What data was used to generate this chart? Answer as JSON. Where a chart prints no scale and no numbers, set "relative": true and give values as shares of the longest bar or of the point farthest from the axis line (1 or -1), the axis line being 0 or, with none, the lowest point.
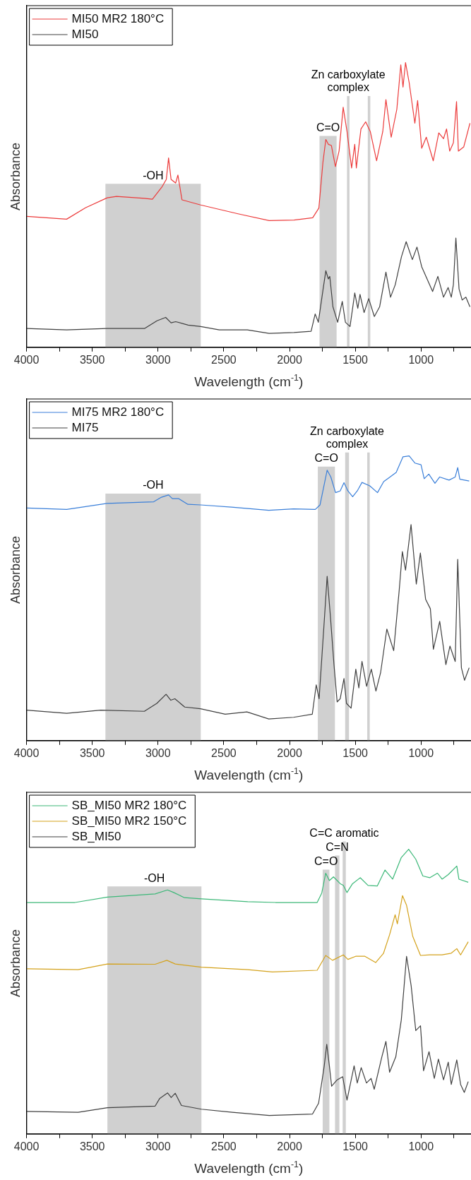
{
  "chart_data": [
    {
      "type": "line",
      "xlabel": "Wavelength (cm$^{-1}$)",
      "ylabel": "Absorbance",
      "relative": true,
      "legend": "top left",
      "grid": false,
      "xlim": [
        4000,
        620
      ],
      "xticks": [
        4000,
        {
          "value": 3750,
          "label": null
        },
        3500,
        {
          "value": 3250,
          "label": null
        },
        3000,
        {
          "value": 2750,
          "label": null
        },
        2500,
        {
          "value": 2250,
          "label": null
        },
        2000,
        {
          "value": 1750,
          "label": null
        },
        1500,
        {
          "value": 1250,
          "label": null
        },
        1000,
        {
          "value": 750,
          "label": null
        }
      ],
      "bands": [
        {
          "axis": "x",
          "from": 3400,
          "to": 2675,
          "label": "-OH",
          "color": "#d0d0d0"
        },
        {
          "axis": "x",
          "from": 1772,
          "to": 1642,
          "label": "C=O",
          "color": "#d0d0d0"
        },
        {
          "axis": "x",
          "from": 1563,
          "to": 1544,
          "label": "Zn carboxylate complex",
          "color": "#d0d0d0"
        },
        {
          "axis": "x",
          "from": 1405,
          "to": 1386,
          "color": "#d0d0d0"
        }
      ],
      "series": [
        {
          "name": "MI50 MR2 180°C",
          "color": "#ec3b3b",
          "x": [
            4000,
            3695,
            3552,
            3387,
            3316,
            3103,
            3043,
            2972,
            2937,
            2920,
            2901,
            2866,
            2849,
            2818,
            2676,
            2392,
            2155,
            1966,
            1824,
            1777,
            1746,
            1724,
            1705,
            1682,
            1651,
            1623,
            1592,
            1563,
            1528,
            1504,
            1492,
            1457,
            1421,
            1386,
            1338,
            1291,
            1267,
            1227,
            1184,
            1154,
            1137,
            1118,
            1090,
            1047,
            1026,
            995,
            960,
            907,
            865,
            829,
            806,
            782,
            754,
            730,
            716,
            675,
            628
          ],
          "values": [
            0.46,
            0.45,
            0.49,
            0.525,
            0.53,
            0.523,
            0.52,
            0.562,
            0.59,
            0.665,
            0.59,
            0.577,
            0.605,
            0.518,
            0.5,
            0.469,
            0.445,
            0.447,
            0.455,
            0.489,
            0.65,
            0.73,
            0.713,
            0.709,
            0.635,
            0.69,
            0.843,
            0.758,
            0.63,
            0.713,
            0.63,
            0.767,
            0.792,
            0.758,
            0.655,
            0.758,
            0.87,
            0.738,
            0.836,
            0.992,
            0.914,
            1.0,
            0.929,
            0.787,
            0.867,
            0.699,
            0.738,
            0.655,
            0.753,
            0.733,
            0.767,
            0.689,
            0.718,
            0.863,
            0.689,
            0.704,
            0.787
          ]
        },
        {
          "name": "MI50",
          "color": "#404040",
          "x": [
            4000,
            3695,
            3387,
            3103,
            3008,
            2942,
            2901,
            2866,
            2771,
            2676,
            2534,
            2321,
            2155,
            1966,
            1836,
            1805,
            1781,
            1746,
            1724,
            1705,
            1694,
            1670,
            1634,
            1599,
            1575,
            1540,
            1504,
            1481,
            1464,
            1433,
            1398,
            1355,
            1315,
            1267,
            1232,
            1196,
            1149,
            1113,
            1066,
            1031,
            995,
            912,
            872,
            829,
            794,
            770,
            754,
            735,
            711,
            687,
            659,
            628
          ],
          "values": [
            0.066,
            0.061,
            0.066,
            0.066,
            0.093,
            0.105,
            0.086,
            0.09,
            0.078,
            0.073,
            0.061,
            0.061,
            0.049,
            0.052,
            0.056,
            0.117,
            0.088,
            0.2,
            0.269,
            0.24,
            0.249,
            0.142,
            0.088,
            0.161,
            0.088,
            0.073,
            0.191,
            0.137,
            0.186,
            0.122,
            0.171,
            0.108,
            0.142,
            0.264,
            0.176,
            0.22,
            0.318,
            0.371,
            0.308,
            0.352,
            0.283,
            0.196,
            0.249,
            0.176,
            0.21,
            0.176,
            0.22,
            0.384,
            0.205,
            0.166,
            0.176,
            0.142
          ]
        }
      ]
    },
    {
      "type": "line",
      "xlabel": "Wavelength (cm$^{-1}$)",
      "ylabel": "Absorbance",
      "relative": true,
      "legend": "top left",
      "grid": false,
      "xlim": [
        4000,
        620
      ],
      "xticks": [
        4000,
        {
          "value": 3750,
          "label": null
        },
        3500,
        {
          "value": 3250,
          "label": null
        },
        3000,
        {
          "value": 2750,
          "label": null
        },
        2500,
        {
          "value": 2250,
          "label": null
        },
        2000,
        {
          "value": 1750,
          "label": null
        },
        1500,
        {
          "value": 1250,
          "label": null
        },
        1000,
        {
          "value": 750,
          "label": null
        }
      ],
      "bands": [
        {
          "axis": "x",
          "from": 3400,
          "to": 2675,
          "label": "-OH",
          "color": "#d0d0d0"
        },
        {
          "axis": "x",
          "from": 1785,
          "to": 1655,
          "label": "C=O",
          "color": "#d0d0d0"
        },
        {
          "axis": "x",
          "from": 1577,
          "to": 1548,
          "label": "Zn carboxylate complex",
          "color": "#d0d0d0"
        },
        {
          "axis": "x",
          "from": 1409,
          "to": 1390,
          "color": "#d0d0d0"
        }
      ],
      "series": [
        {
          "name": "MI75 MR2 180°C",
          "color": "#3a7fd9",
          "x": [
            4000,
            3695,
            3388,
            3033,
            2974,
            2920,
            2891,
            2844,
            2773,
            2678,
            2442,
            2158,
            1969,
            1804,
            1768,
            1714,
            1686,
            1650,
            1615,
            1586,
            1556,
            1520,
            1485,
            1449,
            1390,
            1331,
            1284,
            1236,
            1189,
            1137,
            1090,
            1047,
            1000,
            976,
            941,
            894,
            858,
            787,
            740,
            721,
            705,
            634
          ],
          "values": [
            0.817,
            0.812,
            0.833,
            0.839,
            0.855,
            0.863,
            0.85,
            0.85,
            0.83,
            0.828,
            0.82,
            0.809,
            0.814,
            0.812,
            0.828,
            0.95,
            0.926,
            0.871,
            0.877,
            0.906,
            0.877,
            0.857,
            0.877,
            0.907,
            0.895,
            0.871,
            0.91,
            0.926,
            0.942,
            0.997,
            1.0,
            0.975,
            0.969,
            0.92,
            0.936,
            0.904,
            0.926,
            0.915,
            0.926,
            0.959,
            0.918,
            0.912
          ]
        },
        {
          "name": "MI75",
          "color": "#404040",
          "x": [
            4000,
            3695,
            3435,
            3104,
            3009,
            2939,
            2903,
            2872,
            2797,
            2678,
            2489,
            2324,
            2158,
            1969,
            1827,
            1797,
            1775,
            1733,
            1714,
            1690,
            1662,
            1638,
            1615,
            1586,
            1567,
            1532,
            1496,
            1473,
            1449,
            1414,
            1378,
            1343,
            1307,
            1260,
            1208,
            1166,
            1142,
            1118,
            1076,
            1036,
            1005,
            965,
            929,
            906,
            858,
            811,
            780,
            740,
            721,
            693,
            669,
            634
          ],
          "values": [
            0.107,
            0.096,
            0.107,
            0.103,
            0.131,
            0.163,
            0.142,
            0.147,
            0.118,
            0.112,
            0.093,
            0.101,
            0.076,
            0.082,
            0.093,
            0.196,
            0.147,
            0.441,
            0.577,
            0.441,
            0.267,
            0.136,
            0.147,
            0.218,
            0.131,
            0.114,
            0.251,
            0.185,
            0.278,
            0.191,
            0.251,
            0.174,
            0.24,
            0.392,
            0.316,
            0.528,
            0.664,
            0.599,
            0.759,
            0.55,
            0.659,
            0.496,
            0.463,
            0.321,
            0.419,
            0.267,
            0.332,
            0.278,
            0.637,
            0.256,
            0.212,
            0.256
          ]
        }
      ]
    },
    {
      "type": "line",
      "xlabel": "Wavelength (cm$^{-1}$)",
      "ylabel": "Absorbance",
      "relative": true,
      "legend": "top left",
      "grid": false,
      "xlim": [
        4000,
        620
      ],
      "xticks": [
        4000,
        {
          "value": 3750,
          "label": null
        },
        3500,
        {
          "value": 3250,
          "label": null
        },
        3000,
        {
          "value": 2750,
          "label": null
        },
        2500,
        {
          "value": 2250,
          "label": null
        },
        2000,
        {
          "value": 1750,
          "label": null
        },
        1500,
        {
          "value": 1250,
          "label": null
        },
        1000,
        {
          "value": 750,
          "label": null
        }
      ],
      "bands": [
        {
          "axis": "x",
          "from": 3385,
          "to": 2670,
          "label": "-OH",
          "color": "#d0d0d0"
        },
        {
          "axis": "x",
          "from": 1748,
          "to": 1697,
          "label": "C=O",
          "color": "#d0d0d0"
        },
        {
          "axis": "x",
          "from": 1654,
          "to": 1621,
          "label": "C=N",
          "color": "#d0d0d0"
        },
        {
          "axis": "x",
          "from": 1596,
          "to": 1572,
          "label": "C=C aromatic",
          "color": "#d0d0d0"
        }
      ],
      "series": [
        {
          "name": "SB_MI50 MR2 180°C",
          "color": "#3cb878",
          "x": [
            4000,
            3632,
            3385,
            3022,
            2928,
            2881,
            2799,
            2670,
            2318,
            2107,
            1790,
            1755,
            1725,
            1697,
            1666,
            1614,
            1591,
            1563,
            1521,
            1462,
            1403,
            1333,
            1274,
            1216,
            1150,
            1094,
            1040,
            986,
            934,
            875,
            840,
            793,
            728,
            712,
            641
          ],
          "values": [
            0.813,
            0.813,
            0.832,
            0.843,
            0.857,
            0.848,
            0.83,
            0.826,
            0.816,
            0.813,
            0.813,
            0.846,
            0.916,
            0.89,
            0.903,
            0.879,
            0.873,
            0.848,
            0.879,
            0.9,
            0.873,
            0.871,
            0.927,
            0.895,
            0.971,
            1.0,
            0.965,
            0.906,
            0.9,
            0.916,
            0.895,
            0.911,
            0.941,
            0.895,
            0.884
          ]
        },
        {
          "name": "SB_MI50 MR2 150°C",
          "color": "#d4a21c",
          "x": [
            4000,
            3608,
            3385,
            3022,
            2933,
            2869,
            2670,
            2318,
            2130,
            1790,
            1725,
            1673,
            1591,
            1556,
            1497,
            1427,
            1345,
            1286,
            1239,
            1197,
            1180,
            1141,
            1110,
            1063,
            1004,
            934,
            840,
            770,
            728,
            699,
            641
          ],
          "values": [
            0.58,
            0.577,
            0.597,
            0.596,
            0.61,
            0.597,
            0.586,
            0.577,
            0.569,
            0.575,
            0.627,
            0.61,
            0.629,
            0.613,
            0.624,
            0.624,
            0.602,
            0.634,
            0.7,
            0.77,
            0.738,
            0.837,
            0.803,
            0.694,
            0.627,
            0.629,
            0.629,
            0.635,
            0.651,
            0.629,
            0.675
          ]
        },
        {
          "name": "SB_MI50",
          "color": "#404040",
          "x": [
            4000,
            3608,
            3385,
            3022,
            2987,
            2928,
            2900,
            2869,
            2822,
            2670,
            2435,
            2154,
            1825,
            1779,
            1736,
            1717,
            1697,
            1680,
            1638,
            1596,
            1563,
            1509,
            1485,
            1455,
            1415,
            1380,
            1356,
            1298,
            1267,
            1239,
            1192,
            1150,
            1110,
            1075,
            1040,
            1004,
            981,
            939,
            899,
            868,
            829,
            793,
            770,
            728,
            699,
            671,
            641
          ],
          "values": [
            0.079,
            0.076,
            0.092,
            0.098,
            0.125,
            0.144,
            0.128,
            0.143,
            0.1,
            0.087,
            0.076,
            0.065,
            0.07,
            0.108,
            0.239,
            0.315,
            0.239,
            0.168,
            0.19,
            0.201,
            0.119,
            0.239,
            0.179,
            0.233,
            0.179,
            0.195,
            0.157,
            0.271,
            0.325,
            0.217,
            0.271,
            0.401,
            0.624,
            0.52,
            0.363,
            0.38,
            0.222,
            0.289,
            0.195,
            0.263,
            0.19,
            0.252,
            0.174,
            0.26,
            0.174,
            0.146,
            0.184
          ]
        }
      ]
    }
  ]
}
